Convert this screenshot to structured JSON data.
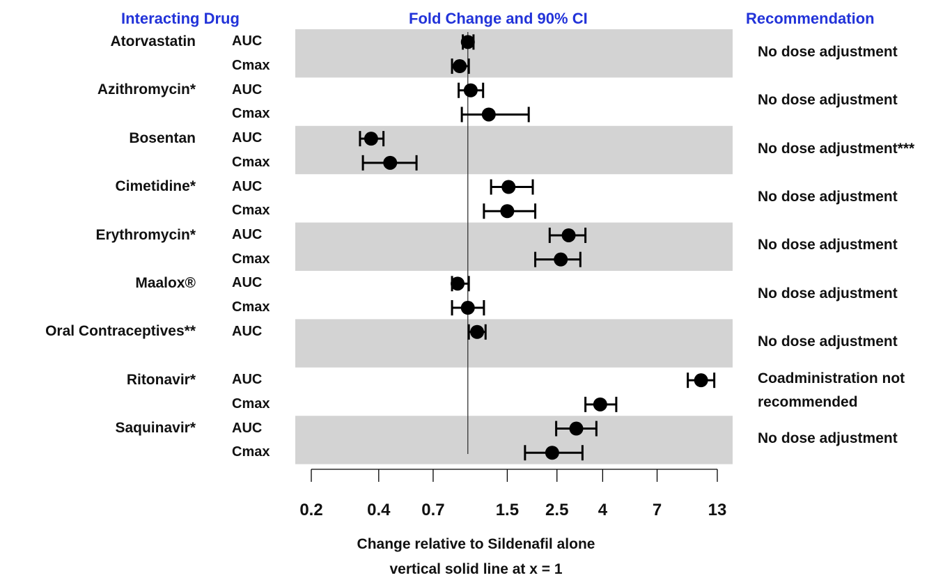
{
  "headers": {
    "drug": "Interacting Drug",
    "fold": "Fold Change and 90% CI",
    "recommendation": "Recommendation"
  },
  "chart_data": {
    "type": "forest",
    "x_scale": "log",
    "xlim": [
      0.2,
      13
    ],
    "x_ticks": [
      0.2,
      0.4,
      0.7,
      1.5,
      2.5,
      4,
      7,
      13
    ],
    "x_tick_labels": [
      "0.2",
      "0.4",
      "0.7",
      "1.5",
      "2.5",
      "4",
      "7",
      "13"
    ],
    "reference_line": 1,
    "xlabel": "Change relative to Sildenafil alone",
    "xlabel_note": "vertical solid line at x = 1",
    "groups": [
      {
        "drug": "Atorvastatin",
        "recommendation": [
          "No dose adjustment"
        ],
        "shaded": true,
        "rows": [
          {
            "metric": "AUC",
            "est": 1.0,
            "lo": 0.95,
            "hi": 1.06
          },
          {
            "metric": "Cmax",
            "est": 0.92,
            "lo": 0.85,
            "hi": 1.01
          }
        ]
      },
      {
        "drug": "Azithromycin*",
        "recommendation": [
          "No dose adjustment"
        ],
        "shaded": false,
        "rows": [
          {
            "metric": "AUC",
            "est": 1.03,
            "lo": 0.91,
            "hi": 1.17
          },
          {
            "metric": "Cmax",
            "est": 1.24,
            "lo": 0.94,
            "hi": 1.87
          }
        ]
      },
      {
        "drug": "Bosentan",
        "recommendation": [
          "No dose adjustment***"
        ],
        "shaded": true,
        "rows": [
          {
            "metric": "AUC",
            "est": 0.37,
            "lo": 0.33,
            "hi": 0.42
          },
          {
            "metric": "Cmax",
            "est": 0.45,
            "lo": 0.34,
            "hi": 0.59
          }
        ]
      },
      {
        "drug": "Cimetidine*",
        "recommendation": [
          "No dose adjustment"
        ],
        "shaded": false,
        "rows": [
          {
            "metric": "AUC",
            "est": 1.52,
            "lo": 1.27,
            "hi": 1.95
          },
          {
            "metric": "Cmax",
            "est": 1.5,
            "lo": 1.18,
            "hi": 2.0
          }
        ]
      },
      {
        "drug": "Erythromycin*",
        "recommendation": [
          "No dose adjustment"
        ],
        "shaded": true,
        "rows": [
          {
            "metric": "AUC",
            "est": 2.82,
            "lo": 2.32,
            "hi": 3.35
          },
          {
            "metric": "Cmax",
            "est": 2.6,
            "lo": 2.0,
            "hi": 3.18
          }
        ]
      },
      {
        "drug": "Maalox®",
        "recommendation": [
          "No dose adjustment"
        ],
        "shaded": false,
        "rows": [
          {
            "metric": "AUC",
            "est": 0.9,
            "lo": 0.85,
            "hi": 1.01
          },
          {
            "metric": "Cmax",
            "est": 1.0,
            "lo": 0.85,
            "hi": 1.18
          }
        ]
      },
      {
        "drug": "Oral Contraceptives**",
        "recommendation": [
          "No dose adjustment"
        ],
        "shaded": true,
        "rows": [
          {
            "metric": "AUC",
            "est": 1.1,
            "lo": 1.01,
            "hi": 1.2
          }
        ]
      },
      {
        "drug": "Ritonavir*",
        "recommendation": [
          "Coadministration not",
          "recommended"
        ],
        "shaded": false,
        "rows": [
          {
            "metric": "AUC",
            "est": 11.0,
            "lo": 9.6,
            "hi": 12.6
          },
          {
            "metric": "Cmax",
            "est": 3.9,
            "lo": 3.35,
            "hi": 4.6
          }
        ]
      },
      {
        "drug": "Saquinavir*",
        "recommendation": [
          "No dose adjustment"
        ],
        "shaded": true,
        "rows": [
          {
            "metric": "AUC",
            "est": 3.05,
            "lo": 2.48,
            "hi": 3.75
          },
          {
            "metric": "Cmax",
            "est": 2.38,
            "lo": 1.8,
            "hi": 3.25
          }
        ]
      }
    ]
  }
}
